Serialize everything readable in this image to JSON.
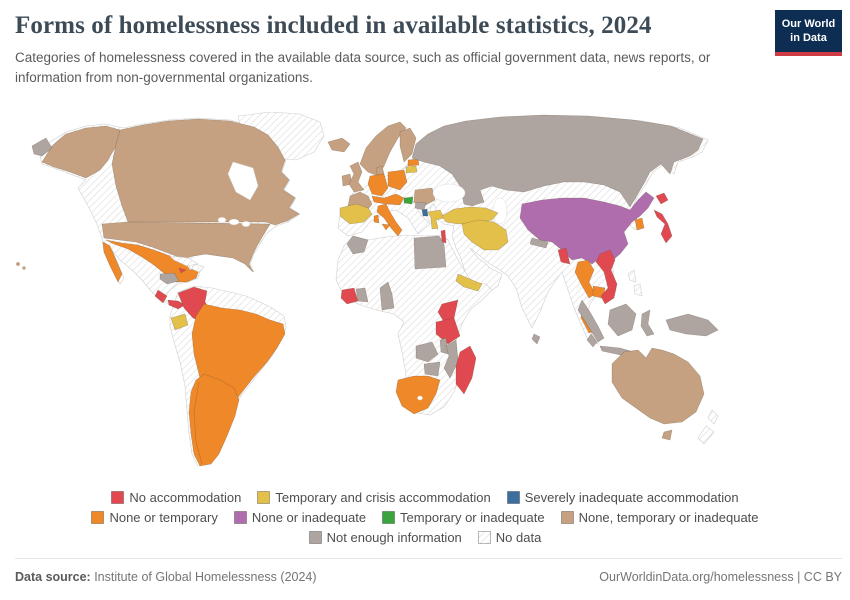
{
  "header": {
    "title": "Forms of homelessness included in available statistics, 2024",
    "subtitle": "Categories of homelessness covered in the available data source, such as official government data, news reports, or information from non-governmental organizations.",
    "logo": {
      "line1": "Our World",
      "line2": "in Data",
      "bg_color": "#0d2e52",
      "accent_color": "#cf3b42"
    }
  },
  "legend": {
    "rows": [
      [
        {
          "id": "no_accommodation",
          "label": "No accommodation",
          "color": "#e0494f"
        },
        {
          "id": "temporary_crisis",
          "label": "Temporary and crisis accommodation",
          "color": "#e3c04a"
        },
        {
          "id": "severely_inadequate",
          "label": "Severely inadequate accommodation",
          "color": "#3c6f9e"
        }
      ],
      [
        {
          "id": "none_or_temporary",
          "label": "None or temporary",
          "color": "#ef8829"
        },
        {
          "id": "none_or_inadequate",
          "label": "None or inadequate",
          "color": "#b06dad"
        },
        {
          "id": "temporary_or_inadequate",
          "label": "Temporary or inadequate",
          "color": "#3ba43f"
        },
        {
          "id": "none_temporary_or_inadequate",
          "label": "None, temporary or inadequate",
          "color": "#c5a181"
        }
      ],
      [
        {
          "id": "not_enough_information",
          "label": "Not enough information",
          "color": "#aea5a1"
        },
        {
          "id": "no_data",
          "label": "No data",
          "pattern": "hatch"
        }
      ]
    ]
  },
  "map": {
    "regions": {
      "alaska": "none_temporary_or_inadequate",
      "canada": "none_temporary_or_inadequate",
      "usa": "none_temporary_or_inadequate",
      "hawaii": "none_temporary_or_inadequate",
      "iceland": "none_temporary_or_inadequate",
      "ireland": "none_temporary_or_inadequate",
      "uk": "none_temporary_or_inadequate",
      "scandinavia": "none_temporary_or_inadequate",
      "finland": "none_temporary_or_inadequate",
      "denmark": "none_temporary_or_inadequate",
      "france": "none_temporary_or_inadequate",
      "romania": "none_temporary_or_inadequate",
      "australia": "none_temporary_or_inadequate",
      "tasmania": "none_temporary_or_inadequate",
      "mexico": "none_or_temporary",
      "baja-california": "none_or_temporary",
      "brazil": "none_or_temporary",
      "argentina-chile": "none_or_temporary",
      "germany": "none_or_temporary",
      "poland": "none_or_temporary",
      "central-europe": "none_or_temporary",
      "italy": "none_or_temporary",
      "sicily": "none_or_temporary",
      "sardinia": "none_or_temporary",
      "latvia": "none_or_temporary",
      "thailand": "none_or_temporary",
      "thai-peninsula": "none_or_temporary",
      "cambodia": "none_or_temporary",
      "south-korea": "none_or_temporary",
      "south-africa": "none_or_temporary",
      "iberia": "temporary_crisis",
      "greece": "temporary_crisis",
      "turkey": "temporary_crisis",
      "iran": "temporary_crisis",
      "yemen": "temporary_crisis",
      "ecuador": "temporary_crisis",
      "lithuania": "temporary_crisis",
      "colombia": "no_accommodation",
      "costa-rica": "no_accommodation",
      "panama": "no_accommodation",
      "jamaica": "no_accommodation",
      "ivory-coast": "no_accommodation",
      "kenya": "no_accommodation",
      "tanzania": "no_accommodation",
      "madagascar": "no_accommodation",
      "israel": "no_accommodation",
      "bangladesh": "no_accommodation",
      "vietnam": "no_accommodation",
      "japan-hokkaido": "no_accommodation",
      "japan-honshu": "no_accommodation",
      "china": "none_or_inadequate",
      "hungary": "temporary_or_inadequate",
      "albania": "severely_inadequate",
      "russia": "not_enough_information",
      "chukotka": "not_enough_information",
      "honduras": "not_enough_information",
      "ghana": "not_enough_information",
      "cameroon": "not_enough_information",
      "morocco": "not_enough_information",
      "egypt": "not_enough_information",
      "serbia": "not_enough_information",
      "nepal": "not_enough_information",
      "sri-lanka": "not_enough_information",
      "zambia": "not_enough_information",
      "malawi": "not_enough_information",
      "mozambique": "not_enough_information",
      "zimbabwe": "not_enough_information",
      "sumatra": "not_enough_information",
      "java": "not_enough_information",
      "borneo": "not_enough_information",
      "sulawesi": "not_enough_information",
      "new-guinea": "not_enough_information",
      "malaysia": "not_enough_information",
      "greenland": "no_data",
      "cuba": "no_data",
      "hispaniola": "no_data",
      "philippines-north": "no_data",
      "philippines-south": "no_data",
      "new-zealand-north": "no_data",
      "new-zealand-south": "no_data"
    }
  },
  "footer": {
    "source_label": "Data source:",
    "source_value": " Institute of Global Homelessness (2024)",
    "credit": "OurWorldinData.org/homelessness | CC BY"
  }
}
